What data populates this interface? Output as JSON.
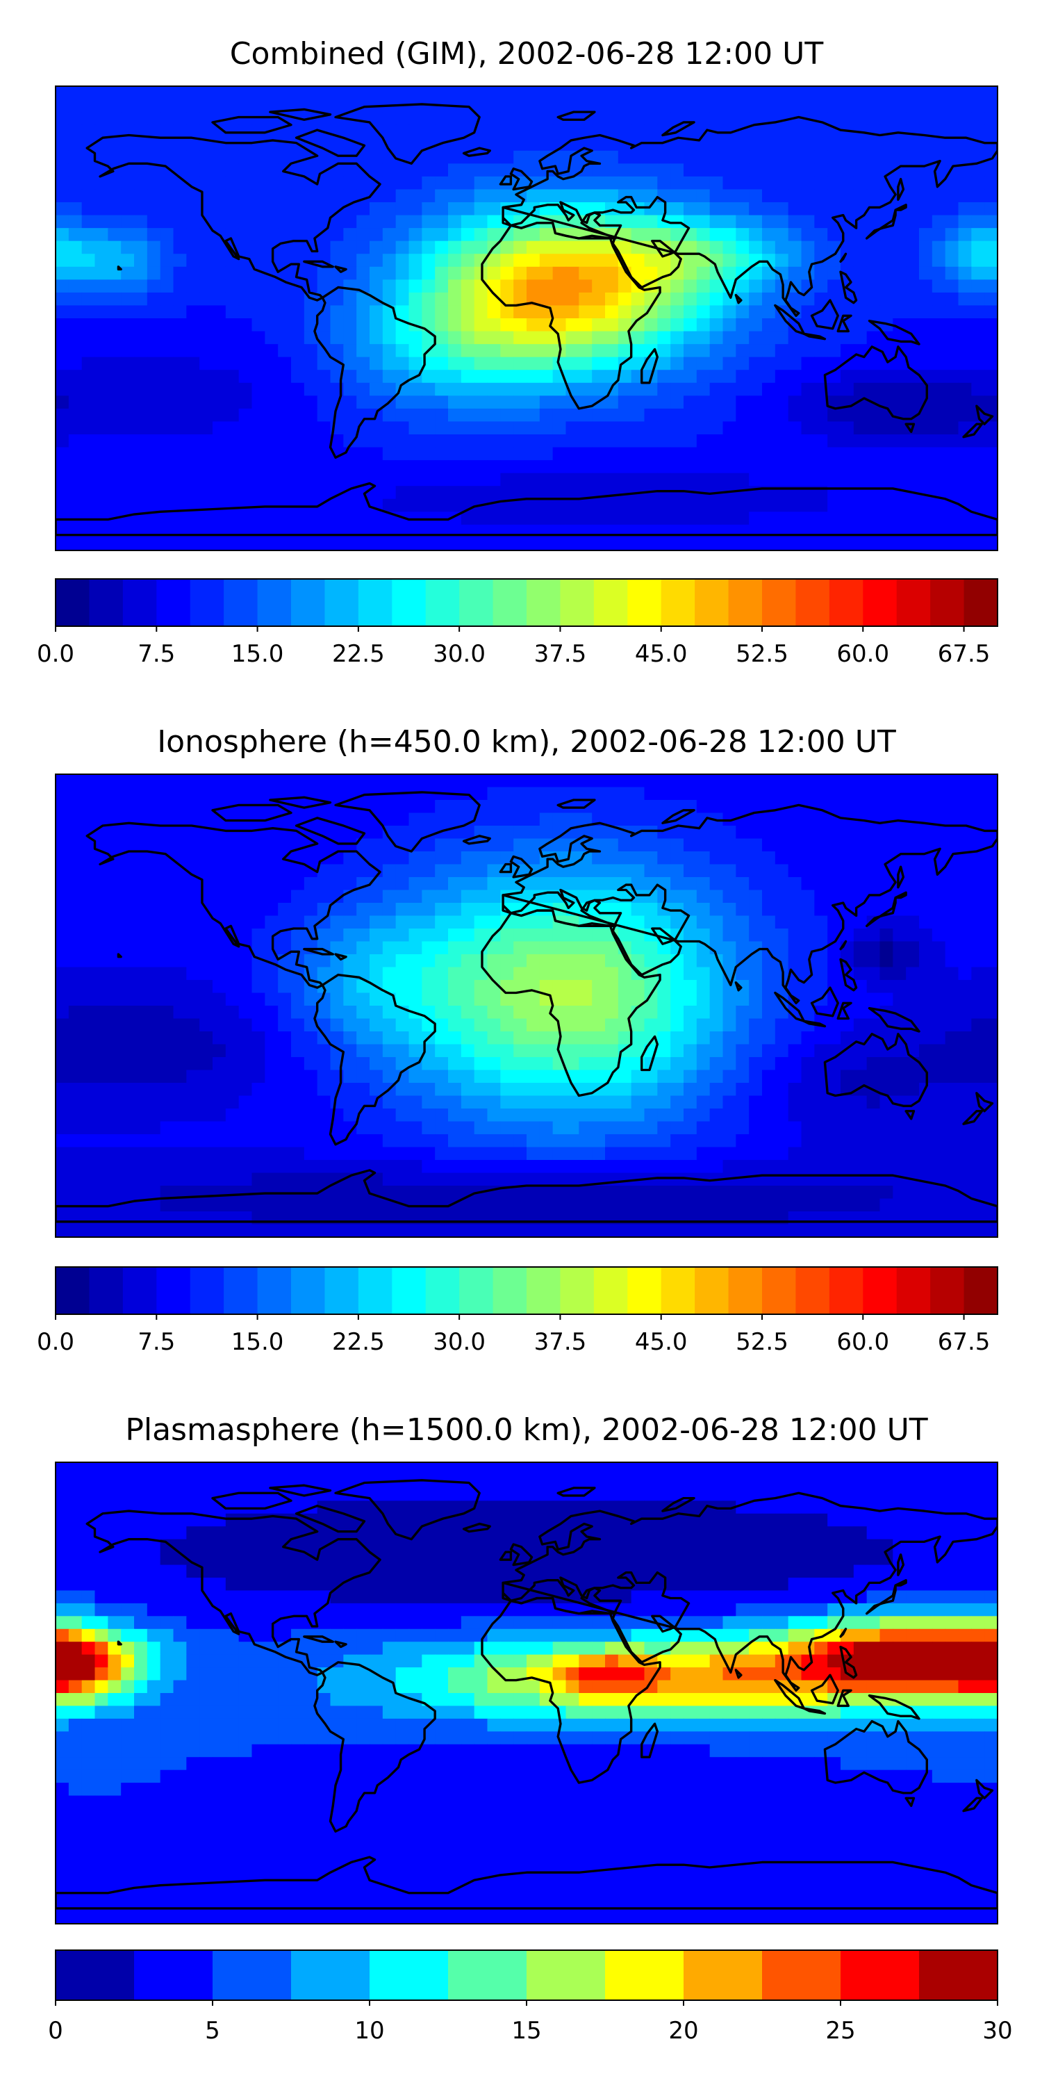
{
  "chart_data": [
    {
      "type": "heatmap",
      "title": "Combined (GIM), 2002-06-28 12:00 UT",
      "colormap": "jet",
      "levels": [
        0,
        2.5,
        5,
        7.5,
        10,
        12.5,
        15,
        17.5,
        20,
        22.5,
        25,
        27.5,
        30,
        32.5,
        35,
        37.5,
        40,
        42.5,
        45,
        47.5,
        50,
        52.5,
        55,
        57.5,
        60,
        62.5,
        65,
        67.5,
        70
      ],
      "colorbar": {
        "ticks": [
          "0.0",
          "7.5",
          "15.0",
          "22.5",
          "30.0",
          "37.5",
          "45.0",
          "52.5",
          "60.0",
          "67.5"
        ],
        "vmin": 0,
        "vmax": 70
      },
      "background_value": 10,
      "features": [
        {
          "lon": 15,
          "lat": 12,
          "value": 40,
          "slon": 38,
          "slat": 22
        },
        {
          "lon": 72,
          "lat": 25,
          "value": 12,
          "slon": 25,
          "slat": 10
        },
        {
          "lon": 175,
          "lat": 25,
          "value": 14,
          "slon": 14,
          "slat": 10
        },
        {
          "lon": -155,
          "lat": 22,
          "value": 10,
          "slon": 14,
          "slat": 10
        },
        {
          "lon": -30,
          "lat": -12,
          "value": 10,
          "slon": 30,
          "slat": 18
        },
        {
          "lon": 140,
          "lat": -35,
          "value": -7,
          "slon": 30,
          "slat": 10
        },
        {
          "lon": -140,
          "lat": -30,
          "value": -4,
          "slon": 40,
          "slat": 15
        },
        {
          "lon": 30,
          "lat": -70,
          "value": -4,
          "slon": 90,
          "slat": 10
        }
      ]
    },
    {
      "type": "heatmap",
      "title": "Ionosphere  (h=450.0 km), 2002-06-28 12:00 UT",
      "colormap": "jet",
      "levels": [
        0,
        2.5,
        5,
        7.5,
        10,
        12.5,
        15,
        17.5,
        20,
        22.5,
        25,
        27.5,
        30,
        32.5,
        35,
        37.5,
        40,
        42.5,
        45,
        47.5,
        50,
        52.5,
        55,
        57.5,
        60,
        62.5,
        65,
        67.5,
        70
      ],
      "colorbar": {
        "ticks": [
          "0.0",
          "7.5",
          "15.0",
          "22.5",
          "30.0",
          "37.5",
          "45.0",
          "52.5",
          "60.0",
          "67.5"
        ],
        "vmin": 0,
        "vmax": 70
      },
      "background_value": 8,
      "features": [
        {
          "lon": 15,
          "lat": 5,
          "value": 30,
          "slon": 45,
          "slat": 35
        },
        {
          "lon": -60,
          "lat": 10,
          "value": 8,
          "slon": 25,
          "slat": 20
        },
        {
          "lon": 137,
          "lat": 20,
          "value": -7,
          "slon": 10,
          "slat": 7
        },
        {
          "lon": -150,
          "lat": -15,
          "value": -5,
          "slon": 40,
          "slat": 15
        },
        {
          "lon": 120,
          "lat": -30,
          "value": -4,
          "slon": 30,
          "slat": 15
        },
        {
          "lon": 0,
          "lat": -75,
          "value": -6,
          "slon": 120,
          "slat": 10
        }
      ]
    },
    {
      "type": "heatmap",
      "title": "Plasmasphere (h=1500.0 km), 2002-06-28 12:00 UT",
      "colormap": "jet",
      "levels": [
        0,
        2.5,
        5,
        7.5,
        10,
        12.5,
        15,
        17.5,
        20,
        22.5,
        25,
        27.5,
        30
      ],
      "colorbar": {
        "ticks": [
          "0",
          "5",
          "10",
          "15",
          "20",
          "25",
          "30"
        ],
        "vmin": 0,
        "vmax": 30
      },
      "background_value": 5,
      "features": [
        {
          "lon": 55,
          "lat": 5,
          "value": 17,
          "slon": 70,
          "slat": 12
        },
        {
          "lon": 30,
          "lat": 8,
          "value": 7,
          "slon": 12,
          "slat": 5
        },
        {
          "lon": 150,
          "lat": 15,
          "value": 22,
          "slon": 35,
          "slat": 10
        },
        {
          "lon": -175,
          "lat": 10,
          "value": 14,
          "slon": 18,
          "slat": 10
        },
        {
          "lon": 0,
          "lat": 55,
          "value": -5,
          "slon": 120,
          "slat": 18
        },
        {
          "lon": 20,
          "lat": -25,
          "value": -2,
          "slon": 50,
          "slat": 15
        }
      ]
    }
  ]
}
